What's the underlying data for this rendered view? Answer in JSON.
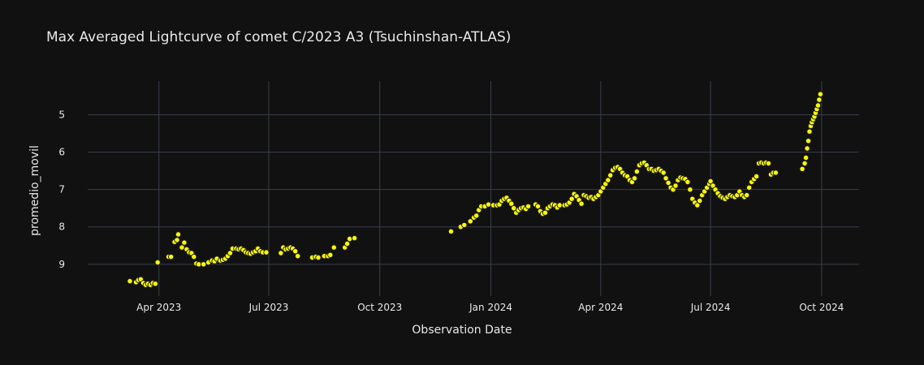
{
  "chart_data": {
    "type": "scatter",
    "title": "Max Averaged Lightcurve of comet C/2023 A3 (Tsuchinshan-ATLAS)",
    "xlabel": "Observation Date",
    "ylabel": "promedio_movil",
    "y_reversed": true,
    "xlim": [
      "2023-02-01",
      "2024-11-01"
    ],
    "ylim": [
      9.85,
      4.1
    ],
    "x_ticks": [
      {
        "date": "2023-04-01",
        "label": "Apr 2023"
      },
      {
        "date": "2023-07-01",
        "label": "Jul 2023"
      },
      {
        "date": "2023-10-01",
        "label": "Oct 2023"
      },
      {
        "date": "2024-01-01",
        "label": "Jan 2024"
      },
      {
        "date": "2024-04-01",
        "label": "Apr 2024"
      },
      {
        "date": "2024-07-01",
        "label": "Jul 2024"
      },
      {
        "date": "2024-10-01",
        "label": "Oct 2024"
      }
    ],
    "y_ticks": [
      5,
      6,
      7,
      8,
      9
    ],
    "grid": true,
    "marker_color": "#ffff00",
    "marker_edge": "#222222",
    "points": [
      [
        "2023-03-08",
        9.45
      ],
      [
        "2023-03-13",
        9.48
      ],
      [
        "2023-03-15",
        9.42
      ],
      [
        "2023-03-17",
        9.4
      ],
      [
        "2023-03-19",
        9.5
      ],
      [
        "2023-03-21",
        9.55
      ],
      [
        "2023-03-23",
        9.52
      ],
      [
        "2023-03-25",
        9.55
      ],
      [
        "2023-03-27",
        9.5
      ],
      [
        "2023-03-29",
        9.52
      ],
      [
        "2023-03-31",
        8.95
      ],
      [
        "2023-04-09",
        8.8
      ],
      [
        "2023-04-11",
        8.8
      ],
      [
        "2023-04-14",
        8.4
      ],
      [
        "2023-04-16",
        8.35
      ],
      [
        "2023-04-17",
        8.2
      ],
      [
        "2023-04-20",
        8.55
      ],
      [
        "2023-04-22",
        8.42
      ],
      [
        "2023-04-24",
        8.6
      ],
      [
        "2023-04-26",
        8.68
      ],
      [
        "2023-04-28",
        8.7
      ],
      [
        "2023-04-30",
        8.8
      ],
      [
        "2023-05-02",
        8.98
      ],
      [
        "2023-05-04",
        9.0
      ],
      [
        "2023-05-08",
        9.0
      ],
      [
        "2023-05-12",
        8.95
      ],
      [
        "2023-05-15",
        8.9
      ],
      [
        "2023-05-17",
        8.92
      ],
      [
        "2023-05-19",
        8.85
      ],
      [
        "2023-05-22",
        8.9
      ],
      [
        "2023-05-24",
        8.88
      ],
      [
        "2023-05-26",
        8.85
      ],
      [
        "2023-05-28",
        8.78
      ],
      [
        "2023-05-30",
        8.7
      ],
      [
        "2023-06-01",
        8.58
      ],
      [
        "2023-06-04",
        8.58
      ],
      [
        "2023-06-06",
        8.6
      ],
      [
        "2023-06-08",
        8.58
      ],
      [
        "2023-06-10",
        8.62
      ],
      [
        "2023-06-12",
        8.68
      ],
      [
        "2023-06-14",
        8.7
      ],
      [
        "2023-06-16",
        8.72
      ],
      [
        "2023-06-18",
        8.68
      ],
      [
        "2023-06-20",
        8.65
      ],
      [
        "2023-06-22",
        8.58
      ],
      [
        "2023-06-24",
        8.65
      ],
      [
        "2023-06-26",
        8.68
      ],
      [
        "2023-06-29",
        8.68
      ],
      [
        "2023-07-11",
        8.7
      ],
      [
        "2023-07-13",
        8.55
      ],
      [
        "2023-07-15",
        8.6
      ],
      [
        "2023-07-17",
        8.58
      ],
      [
        "2023-07-19",
        8.55
      ],
      [
        "2023-07-21",
        8.58
      ],
      [
        "2023-07-23",
        8.65
      ],
      [
        "2023-07-25",
        8.78
      ],
      [
        "2023-08-06",
        8.82
      ],
      [
        "2023-08-09",
        8.8
      ],
      [
        "2023-08-11",
        8.82
      ],
      [
        "2023-08-16",
        8.78
      ],
      [
        "2023-08-19",
        8.78
      ],
      [
        "2023-08-21",
        8.75
      ],
      [
        "2023-08-24",
        8.55
      ],
      [
        "2023-09-02",
        8.55
      ],
      [
        "2023-09-04",
        8.45
      ],
      [
        "2023-09-06",
        8.32
      ],
      [
        "2023-09-10",
        8.3
      ],
      [
        "2023-11-29",
        8.12
      ],
      [
        "2023-12-07",
        8.0
      ],
      [
        "2023-12-10",
        7.95
      ],
      [
        "2023-12-15",
        7.85
      ],
      [
        "2023-12-18",
        7.75
      ],
      [
        "2023-12-20",
        7.7
      ],
      [
        "2023-12-22",
        7.55
      ],
      [
        "2023-12-24",
        7.45
      ],
      [
        "2023-12-27",
        7.45
      ],
      [
        "2023-12-30",
        7.4
      ],
      [
        "2024-01-03",
        7.42
      ],
      [
        "2024-01-06",
        7.42
      ],
      [
        "2024-01-08",
        7.4
      ],
      [
        "2024-01-10",
        7.3
      ],
      [
        "2024-01-12",
        7.25
      ],
      [
        "2024-01-14",
        7.22
      ],
      [
        "2024-01-16",
        7.3
      ],
      [
        "2024-01-18",
        7.38
      ],
      [
        "2024-01-20",
        7.5
      ],
      [
        "2024-01-22",
        7.62
      ],
      [
        "2024-01-24",
        7.55
      ],
      [
        "2024-01-26",
        7.5
      ],
      [
        "2024-01-28",
        7.48
      ],
      [
        "2024-01-30",
        7.52
      ],
      [
        "2024-02-01",
        7.45
      ],
      [
        "2024-02-07",
        7.4
      ],
      [
        "2024-02-09",
        7.45
      ],
      [
        "2024-02-11",
        7.58
      ],
      [
        "2024-02-13",
        7.65
      ],
      [
        "2024-02-15",
        7.62
      ],
      [
        "2024-02-17",
        7.5
      ],
      [
        "2024-02-19",
        7.45
      ],
      [
        "2024-02-21",
        7.4
      ],
      [
        "2024-02-23",
        7.42
      ],
      [
        "2024-02-25",
        7.48
      ],
      [
        "2024-02-27",
        7.42
      ],
      [
        "2024-03-02",
        7.42
      ],
      [
        "2024-03-04",
        7.4
      ],
      [
        "2024-03-06",
        7.35
      ],
      [
        "2024-03-08",
        7.25
      ],
      [
        "2024-03-10",
        7.12
      ],
      [
        "2024-03-12",
        7.18
      ],
      [
        "2024-03-14",
        7.28
      ],
      [
        "2024-03-16",
        7.38
      ],
      [
        "2024-03-18",
        7.15
      ],
      [
        "2024-03-20",
        7.18
      ],
      [
        "2024-03-22",
        7.22
      ],
      [
        "2024-03-24",
        7.2
      ],
      [
        "2024-03-26",
        7.25
      ],
      [
        "2024-03-28",
        7.2
      ],
      [
        "2024-03-30",
        7.15
      ],
      [
        "2024-04-01",
        7.05
      ],
      [
        "2024-04-03",
        6.95
      ],
      [
        "2024-04-05",
        6.85
      ],
      [
        "2024-04-07",
        6.75
      ],
      [
        "2024-04-09",
        6.62
      ],
      [
        "2024-04-11",
        6.48
      ],
      [
        "2024-04-13",
        6.42
      ],
      [
        "2024-04-15",
        6.4
      ],
      [
        "2024-04-17",
        6.45
      ],
      [
        "2024-04-19",
        6.55
      ],
      [
        "2024-04-21",
        6.62
      ],
      [
        "2024-04-23",
        6.65
      ],
      [
        "2024-04-25",
        6.75
      ],
      [
        "2024-04-27",
        6.8
      ],
      [
        "2024-04-29",
        6.7
      ],
      [
        "2024-05-01",
        6.52
      ],
      [
        "2024-05-03",
        6.35
      ],
      [
        "2024-05-05",
        6.3
      ],
      [
        "2024-05-07",
        6.28
      ],
      [
        "2024-05-09",
        6.35
      ],
      [
        "2024-05-11",
        6.45
      ],
      [
        "2024-05-13",
        6.45
      ],
      [
        "2024-05-15",
        6.5
      ],
      [
        "2024-05-17",
        6.48
      ],
      [
        "2024-05-19",
        6.45
      ],
      [
        "2024-05-21",
        6.5
      ],
      [
        "2024-05-23",
        6.55
      ],
      [
        "2024-05-25",
        6.7
      ],
      [
        "2024-05-27",
        6.82
      ],
      [
        "2024-05-29",
        6.95
      ],
      [
        "2024-05-31",
        7.0
      ],
      [
        "2024-06-02",
        6.9
      ],
      [
        "2024-06-04",
        6.75
      ],
      [
        "2024-06-06",
        6.68
      ],
      [
        "2024-06-08",
        6.7
      ],
      [
        "2024-06-10",
        6.72
      ],
      [
        "2024-06-12",
        6.8
      ],
      [
        "2024-06-14",
        7.0
      ],
      [
        "2024-06-16",
        7.25
      ],
      [
        "2024-06-18",
        7.35
      ],
      [
        "2024-06-20",
        7.42
      ],
      [
        "2024-06-22",
        7.3
      ],
      [
        "2024-06-24",
        7.15
      ],
      [
        "2024-06-26",
        7.05
      ],
      [
        "2024-06-28",
        6.95
      ],
      [
        "2024-06-30",
        6.85
      ],
      [
        "2024-07-01",
        6.78
      ],
      [
        "2024-07-03",
        6.9
      ],
      [
        "2024-07-05",
        7.0
      ],
      [
        "2024-07-07",
        7.1
      ],
      [
        "2024-07-09",
        7.18
      ],
      [
        "2024-07-11",
        7.22
      ],
      [
        "2024-07-13",
        7.25
      ],
      [
        "2024-07-15",
        7.2
      ],
      [
        "2024-07-17",
        7.15
      ],
      [
        "2024-07-19",
        7.18
      ],
      [
        "2024-07-21",
        7.2
      ],
      [
        "2024-07-23",
        7.15
      ],
      [
        "2024-07-25",
        7.05
      ],
      [
        "2024-07-27",
        7.15
      ],
      [
        "2024-07-29",
        7.2
      ],
      [
        "2024-07-31",
        7.15
      ],
      [
        "2024-08-02",
        6.95
      ],
      [
        "2024-08-04",
        6.8
      ],
      [
        "2024-08-06",
        6.72
      ],
      [
        "2024-08-08",
        6.65
      ],
      [
        "2024-08-10",
        6.3
      ],
      [
        "2024-08-12",
        6.28
      ],
      [
        "2024-08-14",
        6.3
      ],
      [
        "2024-08-16",
        6.28
      ],
      [
        "2024-08-18",
        6.3
      ],
      [
        "2024-08-20",
        6.6
      ],
      [
        "2024-08-22",
        6.55
      ],
      [
        "2024-08-24",
        6.55
      ],
      [
        "2024-09-15",
        6.45
      ],
      [
        "2024-09-17",
        6.3
      ],
      [
        "2024-09-18",
        6.15
      ],
      [
        "2024-09-19",
        5.9
      ],
      [
        "2024-09-20",
        5.7
      ],
      [
        "2024-09-21",
        5.45
      ],
      [
        "2024-09-22",
        5.3
      ],
      [
        "2024-09-23",
        5.2
      ],
      [
        "2024-09-24",
        5.12
      ],
      [
        "2024-09-25",
        5.05
      ],
      [
        "2024-09-26",
        4.95
      ],
      [
        "2024-09-27",
        4.85
      ],
      [
        "2024-09-28",
        4.75
      ],
      [
        "2024-09-29",
        4.6
      ],
      [
        "2024-09-30",
        4.45
      ]
    ]
  }
}
